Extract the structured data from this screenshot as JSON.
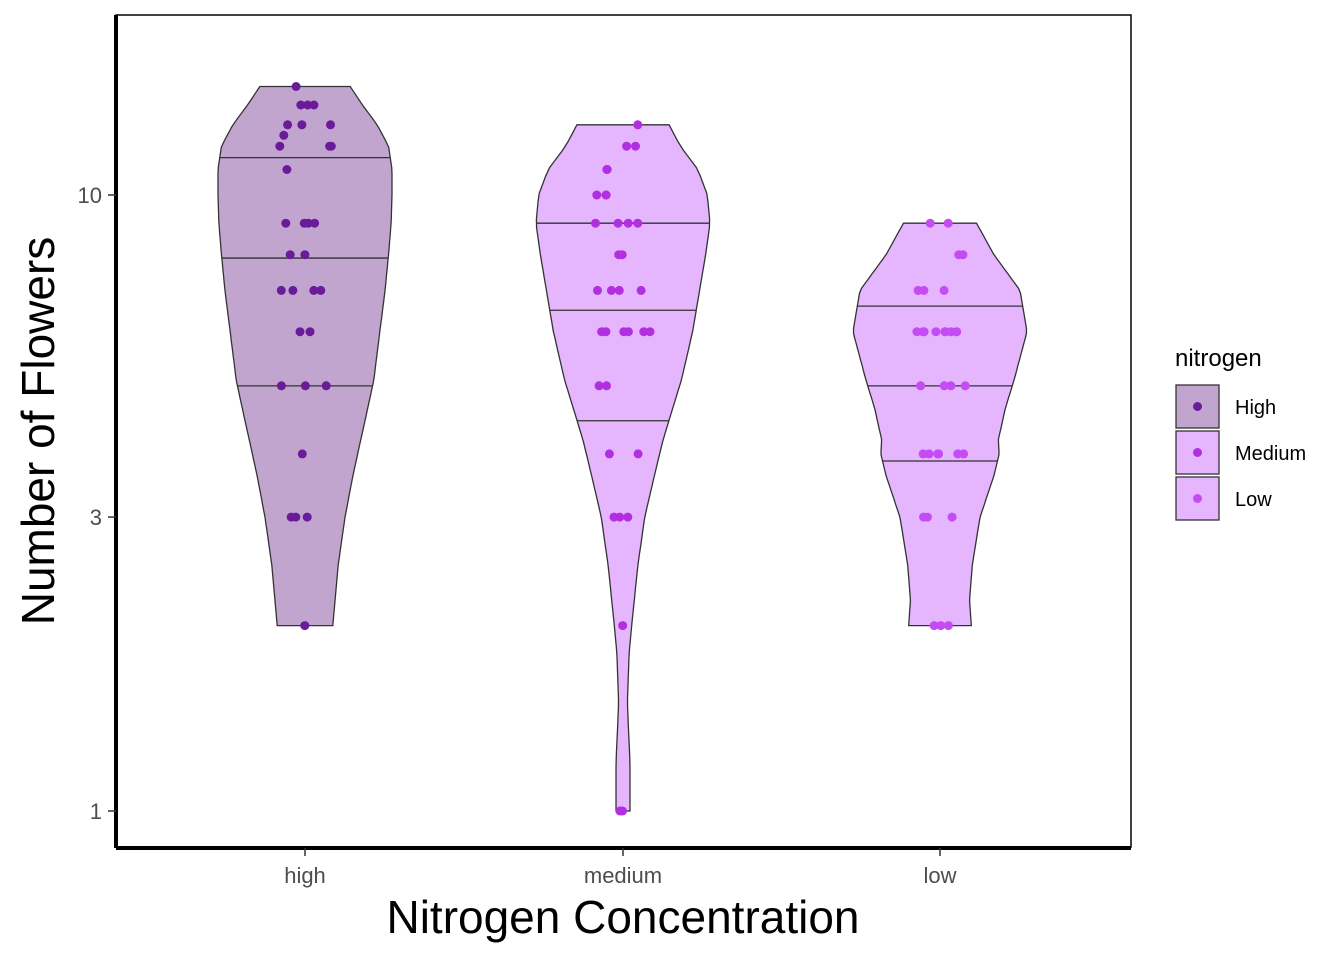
{
  "chart_data": {
    "type": "violin",
    "xlabel": "Nitrogen Concentration",
    "ylabel": "Number of Flowers",
    "y_scale": "log10",
    "ylim": [
      0.9,
      16
    ],
    "y_ticks": [
      1,
      3,
      10
    ],
    "y_tick_labels": [
      "1",
      "3",
      "10"
    ],
    "categories": [
      "high",
      "medium",
      "low"
    ],
    "legend": {
      "title": "nitrogen",
      "position": "right",
      "entries": [
        {
          "label": "High",
          "fill": "#c2a5cf",
          "point": "#6a1b9a"
        },
        {
          "label": "Medium",
          "fill": "#e5b5fd",
          "point": "#b12fe0"
        },
        {
          "label": "Low",
          "fill": "#e5b5fd",
          "point": "#c54bf5"
        }
      ]
    },
    "grid": false,
    "series": [
      {
        "category": "high",
        "fill": "#c2a5cf",
        "point_color": "#6a1b9a",
        "range": [
          2,
          15
        ],
        "quantiles": [
          4.9,
          7.9,
          11.5
        ],
        "density": [
          [
            2,
            0.32
          ],
          [
            2.5,
            0.38
          ],
          [
            3,
            0.46
          ],
          [
            3.5,
            0.55
          ],
          [
            4,
            0.64
          ],
          [
            4.5,
            0.72
          ],
          [
            5,
            0.79
          ],
          [
            6,
            0.86
          ],
          [
            7,
            0.92
          ],
          [
            8,
            0.96
          ],
          [
            9,
            0.99
          ],
          [
            10,
            1.0
          ],
          [
            11,
            1.0
          ],
          [
            12,
            0.96
          ],
          [
            13,
            0.83
          ],
          [
            14,
            0.66
          ],
          [
            15,
            0.52
          ]
        ],
        "points": [
          2,
          3,
          3,
          3,
          3.8,
          4.9,
          4.9,
          4.9,
          6,
          6,
          7,
          7,
          7,
          7,
          8,
          8,
          9,
          9,
          9,
          9,
          11,
          12,
          12,
          12,
          12.5,
          13,
          13,
          13,
          14,
          14,
          14,
          15
        ]
      },
      {
        "category": "medium",
        "fill": "#e5b5fd",
        "point_color": "#b12fe0",
        "range": [
          1,
          13
        ],
        "quantiles": [
          4.3,
          6.5,
          9
        ],
        "density": [
          [
            1,
            0.08
          ],
          [
            1.2,
            0.08
          ],
          [
            1.5,
            0.05
          ],
          [
            1.8,
            0.07
          ],
          [
            2,
            0.1
          ],
          [
            2.5,
            0.17
          ],
          [
            3,
            0.25
          ],
          [
            3.5,
            0.36
          ],
          [
            4,
            0.46
          ],
          [
            4.5,
            0.57
          ],
          [
            5,
            0.67
          ],
          [
            6,
            0.8
          ],
          [
            7,
            0.88
          ],
          [
            8,
            0.95
          ],
          [
            9,
            1.0
          ],
          [
            10,
            0.97
          ],
          [
            11,
            0.86
          ],
          [
            12,
            0.66
          ],
          [
            13,
            0.53
          ]
        ],
        "points": [
          1,
          1,
          2,
          3,
          3,
          3,
          3.8,
          3.8,
          4.9,
          4.9,
          6,
          6,
          6,
          6,
          6,
          6,
          7,
          7,
          7,
          7,
          8,
          8,
          9,
          9,
          9,
          9,
          10,
          10,
          10,
          11,
          11,
          12,
          12,
          13
        ]
      },
      {
        "category": "low",
        "fill": "#e5b5fd",
        "point_color": "#c54bf5",
        "range": [
          2,
          9
        ],
        "quantiles": [
          3.7,
          4.9,
          6.6
        ],
        "density": [
          [
            2,
            0.36
          ],
          [
            2.2,
            0.34
          ],
          [
            2.5,
            0.37
          ],
          [
            3,
            0.46
          ],
          [
            3.5,
            0.62
          ],
          [
            3.8,
            0.68
          ],
          [
            4,
            0.67
          ],
          [
            4.5,
            0.75
          ],
          [
            5,
            0.85
          ],
          [
            6,
            1.0
          ],
          [
            7,
            0.92
          ],
          [
            8,
            0.62
          ],
          [
            9,
            0.42
          ]
        ],
        "points": [
          2,
          2,
          2,
          3,
          3,
          3,
          3.8,
          3.8,
          3.8,
          3.8,
          3.8,
          3.8,
          4.9,
          4.9,
          4.9,
          4.9,
          6,
          6,
          6,
          6,
          6,
          6,
          6,
          6,
          6,
          7,
          7,
          7,
          8,
          8,
          9,
          9
        ]
      }
    ]
  }
}
